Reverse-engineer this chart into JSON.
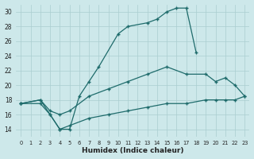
{
  "xlabel": "Humidex (Indice chaleur)",
  "background_color": "#cde8ea",
  "grid_color": "#aacdd0",
  "line_color": "#1e6b6b",
  "xlim": [
    -0.5,
    23.5
  ],
  "ylim": [
    13,
    31
  ],
  "xticks": [
    0,
    1,
    2,
    3,
    4,
    5,
    6,
    7,
    8,
    9,
    10,
    11,
    12,
    13,
    14,
    15,
    16,
    17,
    18,
    19,
    20,
    21,
    22,
    23
  ],
  "yticks": [
    14,
    16,
    18,
    20,
    22,
    24,
    26,
    28,
    30
  ],
  "series": [
    {
      "x": [
        0,
        2,
        3,
        4,
        5,
        6,
        7,
        8,
        10,
        11,
        13,
        14,
        15,
        16,
        17,
        18
      ],
      "y": [
        17.5,
        18,
        16,
        14,
        14,
        18.5,
        20.5,
        22.5,
        27,
        28,
        28.5,
        29,
        30,
        30.5,
        30.5,
        24.5
      ]
    },
    {
      "x": [
        0,
        2,
        3,
        4,
        5,
        7,
        9,
        11,
        13,
        15,
        17,
        19,
        20,
        21,
        22,
        23
      ],
      "y": [
        17.5,
        18,
        16.5,
        16,
        16.5,
        18.5,
        19.5,
        20.5,
        21.5,
        22.5,
        21.5,
        21.5,
        20.5,
        21,
        20,
        18.5
      ]
    },
    {
      "x": [
        0,
        2,
        3,
        4,
        5,
        7,
        9,
        11,
        13,
        15,
        17,
        19,
        20,
        21,
        22,
        23
      ],
      "y": [
        17.5,
        17.5,
        16,
        14,
        14.5,
        15.5,
        16,
        16.5,
        17,
        17.5,
        17.5,
        18,
        18,
        18,
        18,
        18.5
      ]
    }
  ]
}
